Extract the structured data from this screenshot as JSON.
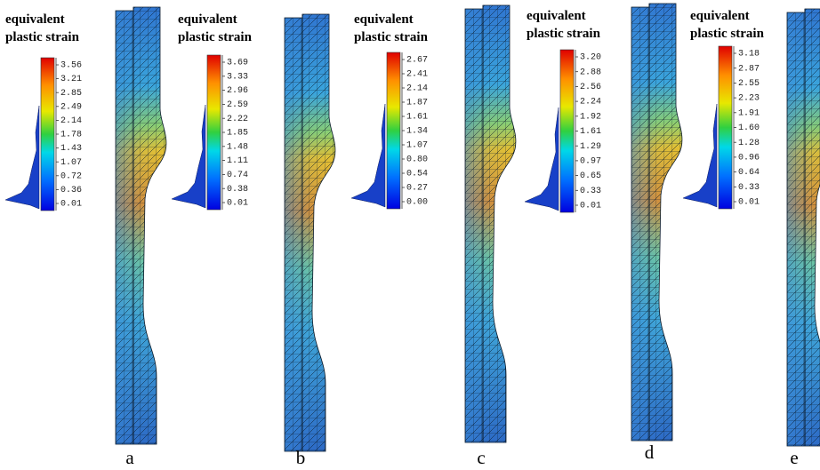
{
  "panels": [
    {
      "title": [
        "equivalent",
        "plastic strain"
      ],
      "ticks": [
        "3.56",
        "3.21",
        "2.85",
        "2.49",
        "2.14",
        "1.78",
        "1.43",
        "1.07",
        "0.72",
        "0.36",
        "0.01"
      ],
      "label": "a"
    },
    {
      "title": [
        "equivalent",
        "plastic strain"
      ],
      "ticks": [
        "3.69",
        "3.33",
        "2.96",
        "2.59",
        "2.22",
        "1.85",
        "1.48",
        "1.11",
        "0.74",
        "0.38",
        "0.01"
      ],
      "label": "b"
    },
    {
      "title": [
        "equivalent",
        "plastic strain"
      ],
      "ticks": [
        "2.67",
        "2.41",
        "2.14",
        "1.87",
        "1.61",
        "1.34",
        "1.07",
        "0.80",
        "0.54",
        "0.27",
        "0.00"
      ],
      "label": "c"
    },
    {
      "title": [
        "equivalent",
        "plastic strain"
      ],
      "ticks": [
        "3.20",
        "2.88",
        "2.56",
        "2.24",
        "1.92",
        "1.61",
        "1.29",
        "0.97",
        "0.65",
        "0.33",
        "0.01"
      ],
      "label": "d"
    },
    {
      "title": [
        "equivalent",
        "plastic strain"
      ],
      "ticks": [
        "3.18",
        "2.87",
        "2.55",
        "2.23",
        "1.91",
        "1.60",
        "1.28",
        "0.96",
        "0.64",
        "0.33",
        "0.01"
      ],
      "label": "e"
    }
  ]
}
